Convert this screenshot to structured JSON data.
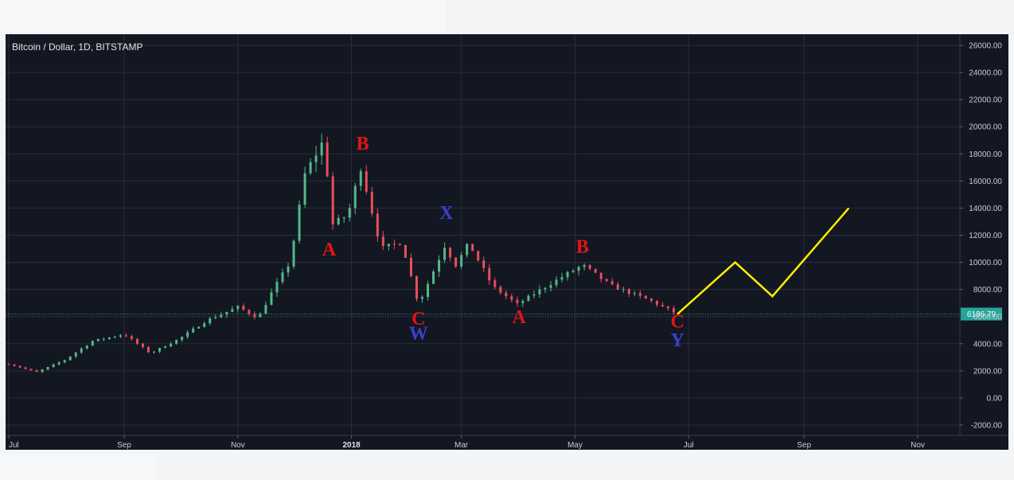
{
  "window": {
    "title": "Bitcoin / Dollar, 1D, BITSTAMP"
  },
  "colors": {
    "background": "#131722",
    "grid": "#2a2e39",
    "candle_up": "#53b987",
    "candle_down": "#eb4d5c",
    "wave_red": "#e01616",
    "wave_blue": "#3a3fd0",
    "projection": "#ffee00",
    "price_line": "#26a69a"
  },
  "chart_data": {
    "type": "candlestick",
    "title": "Bitcoin / Dollar, 1D, BITSTAMP",
    "y_axis": {
      "ticks": [
        "26000.00",
        "24000.00",
        "22000.00",
        "20000.00",
        "18000.00",
        "16000.00",
        "14000.00",
        "12000.00",
        "10000.00",
        "8000.00",
        "6000.00",
        "4000.00",
        "2000.00",
        "0.00",
        "-2000.00"
      ],
      "range": [
        -2000,
        26000
      ]
    },
    "x_axis": {
      "ticks": [
        {
          "label": "Jul",
          "bold": false
        },
        {
          "label": "Sep",
          "bold": false
        },
        {
          "label": "Nov",
          "bold": false
        },
        {
          "label": "2018",
          "bold": true
        },
        {
          "label": "Mar",
          "bold": false
        },
        {
          "label": "May",
          "bold": false
        },
        {
          "label": "Jul",
          "bold": false
        },
        {
          "label": "Sep",
          "bold": false
        },
        {
          "label": "Nov",
          "bold": false
        }
      ]
    },
    "current_price": {
      "label": "6186.79",
      "value": 6186.79
    },
    "price_path": [
      {
        "date": "2017-07-01",
        "value": 2500
      },
      {
        "date": "2017-07-16",
        "value": 1900
      },
      {
        "date": "2017-07-31",
        "value": 2800
      },
      {
        "date": "2017-08-15",
        "value": 4200
      },
      {
        "date": "2017-09-01",
        "value": 4700
      },
      {
        "date": "2017-09-15",
        "value": 3300
      },
      {
        "date": "2017-10-01",
        "value": 4400
      },
      {
        "date": "2017-10-15",
        "value": 5700
      },
      {
        "date": "2017-11-01",
        "value": 6700
      },
      {
        "date": "2017-11-12",
        "value": 5900
      },
      {
        "date": "2017-11-20",
        "value": 8000
      },
      {
        "date": "2017-11-29",
        "value": 10000
      },
      {
        "date": "2017-12-07",
        "value": 16500
      },
      {
        "date": "2017-12-17",
        "value": 19000
      },
      {
        "date": "2017-12-22",
        "value": 12800
      },
      {
        "date": "2017-12-30",
        "value": 13500
      },
      {
        "date": "2018-01-06",
        "value": 17000
      },
      {
        "date": "2018-01-17",
        "value": 11000
      },
      {
        "date": "2018-01-28",
        "value": 11500
      },
      {
        "date": "2018-02-06",
        "value": 6900
      },
      {
        "date": "2018-02-20",
        "value": 11200
      },
      {
        "date": "2018-02-26",
        "value": 9800
      },
      {
        "date": "2018-03-05",
        "value": 11400
      },
      {
        "date": "2018-03-18",
        "value": 8200
      },
      {
        "date": "2018-03-31",
        "value": 6900
      },
      {
        "date": "2018-04-15",
        "value": 8200
      },
      {
        "date": "2018-05-05",
        "value": 9800
      },
      {
        "date": "2018-05-20",
        "value": 8300
      },
      {
        "date": "2018-06-10",
        "value": 7200
      },
      {
        "date": "2018-06-25",
        "value": 6187
      }
    ],
    "projection": [
      {
        "date": "2018-06-25",
        "value": 6187
      },
      {
        "date": "2018-07-26",
        "value": 10000
      },
      {
        "date": "2018-08-15",
        "value": 7500
      },
      {
        "date": "2018-09-25",
        "value": 14000
      }
    ],
    "wave_labels": [
      {
        "text": "B",
        "color": "red",
        "date": "2018-01-07",
        "value": 18300
      },
      {
        "text": "A",
        "color": "red",
        "date": "2017-12-20",
        "value": 10500
      },
      {
        "text": "X",
        "color": "blue",
        "date": "2018-02-21",
        "value": 13200
      },
      {
        "text": "C",
        "color": "red",
        "date": "2018-02-06",
        "value": 5400
      },
      {
        "text": "W",
        "color": "blue",
        "date": "2018-02-06",
        "value": 4300
      },
      {
        "text": "A",
        "color": "red",
        "date": "2018-04-01",
        "value": 5500
      },
      {
        "text": "B",
        "color": "red",
        "date": "2018-05-05",
        "value": 10700
      },
      {
        "text": "C",
        "color": "red",
        "date": "2018-06-25",
        "value": 5200
      },
      {
        "text": "Y",
        "color": "blue",
        "date": "2018-06-25",
        "value": 3800
      }
    ]
  }
}
